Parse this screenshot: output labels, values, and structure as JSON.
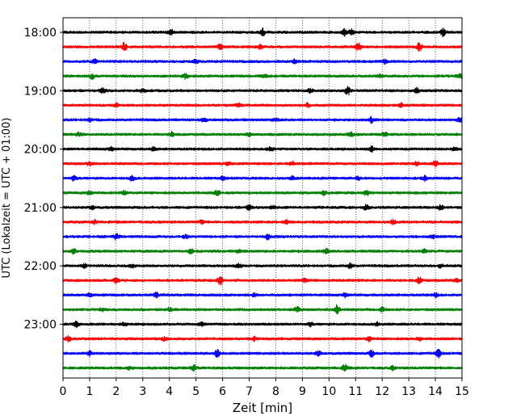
{
  "chart_data": {
    "type": "line",
    "title": "",
    "xlabel": "Zeit  [min]",
    "ylabel": "UTC (Lokalzeit = UTC + 01:00)",
    "xlim": [
      0,
      15
    ],
    "x_ticks": [
      "0",
      "1",
      "2",
      "3",
      "4",
      "5",
      "6",
      "7",
      "8",
      "9",
      "10",
      "11",
      "12",
      "13",
      "14",
      "15"
    ],
    "y_ticks": [
      "18:00",
      "19:00",
      "20:00",
      "21:00",
      "22:00",
      "23:00"
    ],
    "grid": "vertical dotted at each minute",
    "row_interval_minutes": 15,
    "rows": [
      {
        "start": "18:00",
        "color": "#000000",
        "events": [
          [
            4.05,
            4
          ],
          [
            7.5,
            5
          ],
          [
            10.6,
            4
          ],
          [
            10.85,
            4
          ],
          [
            14.3,
            5
          ]
        ]
      },
      {
        "start": "18:15",
        "color": "#ff0000",
        "events": [
          [
            2.3,
            5
          ],
          [
            5.9,
            3
          ],
          [
            7.4,
            3
          ],
          [
            11.1,
            5
          ],
          [
            13.4,
            5
          ]
        ]
      },
      {
        "start": "18:30",
        "color": "#0000ff",
        "events": [
          [
            1.2,
            2
          ],
          [
            5.0,
            2
          ],
          [
            8.7,
            2
          ],
          [
            12.1,
            2
          ]
        ]
      },
      {
        "start": "18:45",
        "color": "#008000",
        "events": [
          [
            1.1,
            3
          ],
          [
            4.6,
            3
          ],
          [
            7.6,
            2
          ],
          [
            11.9,
            2
          ],
          [
            14.9,
            3
          ]
        ]
      },
      {
        "start": "19:00",
        "color": "#000000",
        "events": [
          [
            1.5,
            3
          ],
          [
            3.0,
            2
          ],
          [
            9.3,
            2
          ],
          [
            10.7,
            5
          ],
          [
            13.3,
            3
          ]
        ]
      },
      {
        "start": "19:15",
        "color": "#ff0000",
        "events": [
          [
            2.0,
            2
          ],
          [
            6.6,
            2
          ],
          [
            9.2,
            2
          ],
          [
            12.7,
            2
          ]
        ]
      },
      {
        "start": "19:30",
        "color": "#0000ff",
        "events": [
          [
            1.0,
            2
          ],
          [
            5.3,
            3
          ],
          [
            8.0,
            2
          ],
          [
            11.6,
            3
          ],
          [
            14.9,
            3
          ]
        ]
      },
      {
        "start": "19:45",
        "color": "#008000",
        "events": [
          [
            0.6,
            2
          ],
          [
            4.1,
            3
          ],
          [
            7.0,
            2
          ],
          [
            10.8,
            3
          ],
          [
            12.1,
            2
          ]
        ]
      },
      {
        "start": "20:00",
        "color": "#000000",
        "events": [
          [
            1.8,
            2
          ],
          [
            3.4,
            2
          ],
          [
            7.8,
            3
          ],
          [
            11.6,
            3
          ],
          [
            14.7,
            2
          ]
        ]
      },
      {
        "start": "20:15",
        "color": "#ff0000",
        "events": [
          [
            1.0,
            2
          ],
          [
            6.2,
            2
          ],
          [
            8.6,
            2
          ],
          [
            13.3,
            2
          ],
          [
            14.0,
            3
          ]
        ]
      },
      {
        "start": "20:30",
        "color": "#0000ff",
        "events": [
          [
            0.4,
            3
          ],
          [
            2.6,
            3
          ],
          [
            6.0,
            2
          ],
          [
            8.6,
            2
          ],
          [
            11.1,
            2
          ],
          [
            13.6,
            3
          ]
        ]
      },
      {
        "start": "20:45",
        "color": "#008000",
        "events": [
          [
            1.0,
            2
          ],
          [
            2.3,
            2
          ],
          [
            5.8,
            3
          ],
          [
            9.8,
            3
          ],
          [
            11.4,
            3
          ]
        ]
      },
      {
        "start": "21:00",
        "color": "#000000",
        "events": [
          [
            1.1,
            2
          ],
          [
            7.0,
            3
          ],
          [
            7.9,
            2
          ],
          [
            11.4,
            3
          ],
          [
            14.2,
            3
          ]
        ]
      },
      {
        "start": "21:15",
        "color": "#ff0000",
        "events": [
          [
            1.2,
            2
          ],
          [
            5.2,
            2
          ],
          [
            8.4,
            2
          ],
          [
            12.4,
            3
          ]
        ]
      },
      {
        "start": "21:30",
        "color": "#0000ff",
        "events": [
          [
            2.0,
            3
          ],
          [
            4.6,
            2
          ],
          [
            7.7,
            3
          ],
          [
            13.9,
            2
          ]
        ]
      },
      {
        "start": "21:45",
        "color": "#008000",
        "events": [
          [
            0.4,
            3
          ],
          [
            4.8,
            3
          ],
          [
            6.6,
            2
          ],
          [
            9.9,
            3
          ],
          [
            13.6,
            2
          ]
        ]
      },
      {
        "start": "22:00",
        "color": "#000000",
        "events": [
          [
            0.8,
            2
          ],
          [
            2.6,
            2
          ],
          [
            6.6,
            3
          ],
          [
            10.8,
            3
          ],
          [
            14.2,
            2
          ]
        ]
      },
      {
        "start": "22:15",
        "color": "#ff0000",
        "events": [
          [
            2.0,
            3
          ],
          [
            5.9,
            5
          ],
          [
            9.1,
            2
          ],
          [
            13.4,
            4
          ],
          [
            14.8,
            2
          ]
        ]
      },
      {
        "start": "22:30",
        "color": "#0000ff",
        "events": [
          [
            1.0,
            2
          ],
          [
            3.5,
            3
          ],
          [
            7.2,
            2
          ],
          [
            10.6,
            2
          ],
          [
            14.0,
            2
          ]
        ]
      },
      {
        "start": "22:45",
        "color": "#008000",
        "events": [
          [
            1.5,
            2
          ],
          [
            4.0,
            2
          ],
          [
            8.8,
            3
          ],
          [
            10.3,
            5
          ],
          [
            12.0,
            3
          ]
        ]
      },
      {
        "start": "23:00",
        "color": "#000000",
        "events": [
          [
            0.5,
            3
          ],
          [
            2.3,
            2
          ],
          [
            5.2,
            2
          ],
          [
            9.3,
            2
          ],
          [
            11.8,
            2
          ]
        ]
      },
      {
        "start": "23:15",
        "color": "#ff0000",
        "events": [
          [
            0.2,
            3
          ],
          [
            3.8,
            2
          ],
          [
            7.2,
            2
          ],
          [
            11.5,
            3
          ],
          [
            13.4,
            2
          ]
        ]
      },
      {
        "start": "23:30",
        "color": "#0000ff",
        "events": [
          [
            1.0,
            3
          ],
          [
            5.8,
            5
          ],
          [
            9.6,
            3
          ],
          [
            11.6,
            4
          ],
          [
            14.1,
            5
          ]
        ]
      },
      {
        "start": "23:45",
        "color": "#008000",
        "events": [
          [
            2.5,
            2
          ],
          [
            4.9,
            4
          ],
          [
            10.6,
            4
          ],
          [
            12.4,
            2
          ]
        ]
      }
    ]
  }
}
